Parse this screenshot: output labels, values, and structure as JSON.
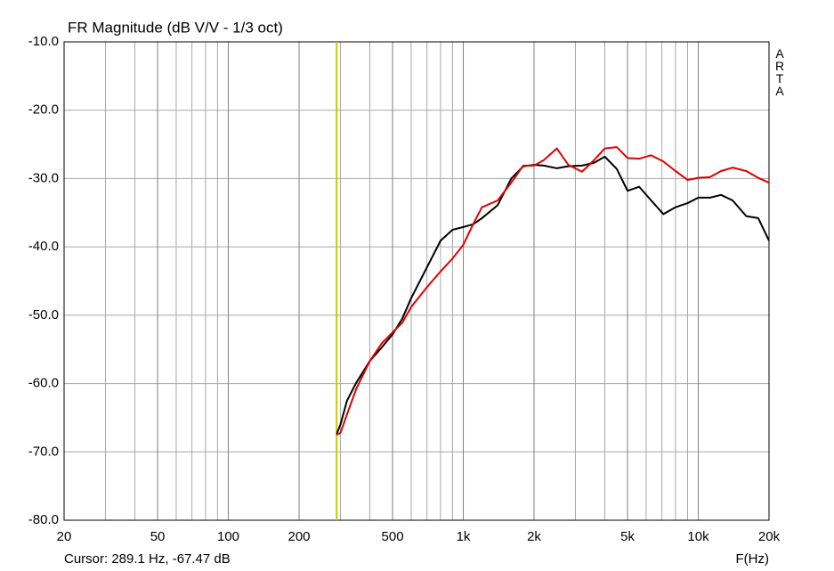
{
  "chart_data": {
    "type": "line",
    "title": "FR Magnitude (dB V/V - 1/3 oct)",
    "x_label": "F(Hz)",
    "side_label": "ARTA",
    "cursor": {
      "label": "Cursor: 289.1 Hz, -67.47 dB",
      "x": 289.1,
      "color": "#c8c800"
    },
    "log_x": true,
    "grid": true,
    "xlim": [
      20,
      20000
    ],
    "ylim": [
      -80,
      -10
    ],
    "xticks": [
      20,
      50,
      100,
      200,
      500,
      {
        "value": 1000,
        "label": "1k"
      },
      {
        "value": 2000,
        "label": "2k"
      },
      {
        "value": 5000,
        "label": "5k"
      },
      {
        "value": 10000,
        "label": "10k"
      },
      {
        "value": 20000,
        "label": "20k"
      }
    ],
    "x_minor_gridlines": [
      30,
      40,
      60,
      70,
      80,
      90,
      300,
      400,
      600,
      700,
      800,
      900,
      3000,
      4000,
      6000,
      7000,
      8000,
      9000
    ],
    "yticks": [
      {
        "value": -10,
        "label": "-10.0"
      },
      {
        "value": -20,
        "label": "-20.0"
      },
      {
        "value": -30,
        "label": "-30.0"
      },
      {
        "value": -40,
        "label": "-40.0"
      },
      {
        "value": -50,
        "label": "-50.0"
      },
      {
        "value": -60,
        "label": "-60.0"
      },
      {
        "value": -70,
        "label": "-70.0"
      },
      {
        "value": -80,
        "label": "-80.0"
      }
    ],
    "x": [
      289,
      300,
      320,
      350,
      400,
      450,
      500,
      550,
      600,
      700,
      800,
      900,
      1000,
      1100,
      1200,
      1400,
      1600,
      1800,
      2000,
      2200,
      2500,
      2800,
      3200,
      3600,
      4000,
      4500,
      5000,
      5600,
      6300,
      7100,
      8000,
      9000,
      10000,
      11200,
      12500,
      14000,
      16000,
      18000,
      20000
    ],
    "series": [
      {
        "color": "#000000",
        "values": [
          -67.4,
          -66,
          -62.5,
          -59.9,
          -56.7,
          -54.7,
          -52.8,
          -50.5,
          -47.5,
          -43,
          -39.1,
          -37.5,
          -37.1,
          -36.7,
          -35.8,
          -33.9,
          -30,
          -28.2,
          -28,
          -28.1,
          -28.5,
          -28.2,
          -28.1,
          -27.7,
          -26.8,
          -28.6,
          -31.8,
          -31.2,
          -33.2,
          -35.2,
          -34.2,
          -33.6,
          -32.8,
          -32.8,
          -32.4,
          -33.2,
          -35.5,
          -35.8,
          -39.1
        ]
      },
      {
        "color": "#e00000",
        "values": [
          -67.5,
          -67.2,
          -64.5,
          -60.8,
          -56.7,
          -54.1,
          -52.5,
          -51.1,
          -48.8,
          -45.9,
          -43.6,
          -41.7,
          -39.7,
          -36.7,
          -34.2,
          -33.2,
          -30.6,
          -28.1,
          -28.1,
          -27.3,
          -25.6,
          -28,
          -29,
          -27.3,
          -25.6,
          -25.4,
          -27,
          -27.1,
          -26.6,
          -27.5,
          -28.9,
          -30.2,
          -29.9,
          -29.8,
          -28.9,
          -28.4,
          -28.9,
          -29.9,
          -30.6
        ]
      }
    ]
  }
}
